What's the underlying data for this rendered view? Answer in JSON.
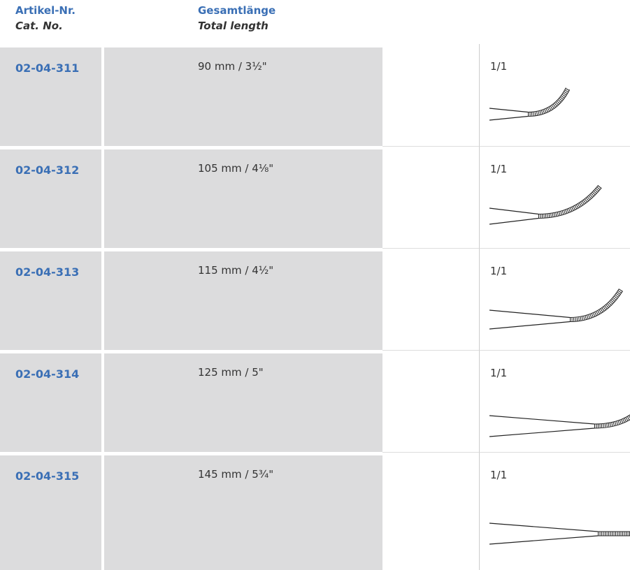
{
  "header": {
    "cat_no": {
      "de": "Artikel-Nr.",
      "en": "Cat. No."
    },
    "length": {
      "de": "Gesamtlänge",
      "en": "Total length"
    }
  },
  "rows": [
    {
      "cat_no": "02-04-311",
      "length": "90 mm / 3½\"",
      "scale": "1/1"
    },
    {
      "cat_no": "02-04-312",
      "length": "105 mm / 4⅛\"",
      "scale": "1/1"
    },
    {
      "cat_no": "02-04-313",
      "length": "115 mm / 4½\"",
      "scale": "1/1"
    },
    {
      "cat_no": "02-04-314",
      "length": "125 mm / 5\"",
      "scale": "1/1"
    },
    {
      "cat_no": "02-04-315",
      "length": "145 mm / 5¾\"",
      "scale": "1/1"
    }
  ]
}
